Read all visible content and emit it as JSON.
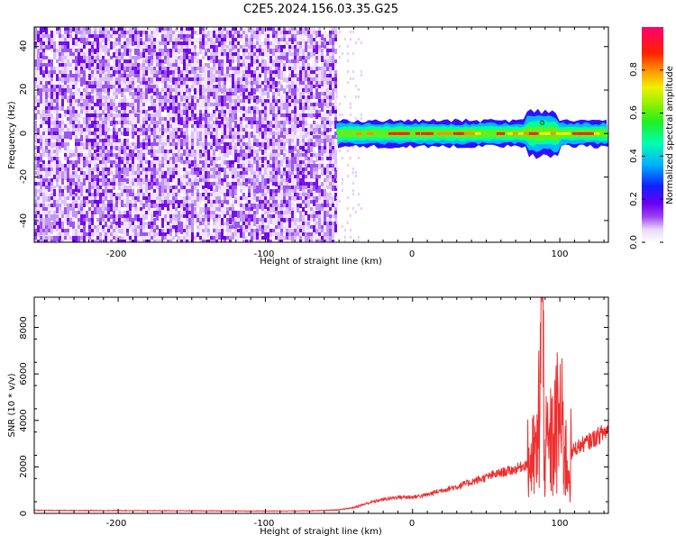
{
  "title": "C2E5.2024.156.03.35.G25",
  "chart_data": [
    {
      "type": "heatmap",
      "xlabel": "Height of straight line (km)",
      "ylabel": "Frequency (Hz)",
      "xlim": [
        -257,
        133
      ],
      "ylim": [
        -50,
        49
      ],
      "xticks": [
        -200,
        -100,
        0,
        100
      ],
      "yticks": [
        -40,
        -20,
        0,
        20,
        40
      ],
      "colorbar": {
        "label": "Normalized spectral amplitude",
        "range": [
          0,
          1
        ],
        "ticks": [
          "0.0",
          "0.2",
          "0.4",
          "0.6",
          "0.8"
        ],
        "tick_values": [
          0.0,
          0.2,
          0.4,
          0.6,
          0.8
        ]
      },
      "noise_region": {
        "x_range": [
          -257,
          -52
        ],
        "freq_range": [
          -50,
          49
        ],
        "level": "low (0.0–0.25)"
      },
      "signal_band": {
        "x_range": [
          -52,
          133
        ],
        "center_freq_hz": 0,
        "half_width_hz": 3,
        "peak_level": "0.8–1.0",
        "disturbance_x": 88
      }
    },
    {
      "type": "line",
      "xlabel": "Height of straight line (km)",
      "ylabel": "SNR (10 * v/v)",
      "xlim": [
        -257,
        133
      ],
      "ylim": [
        0,
        9300
      ],
      "xticks": [
        -200,
        -100,
        0,
        100
      ],
      "yticks": [
        0,
        2000,
        4000,
        6000,
        8000
      ],
      "series": [
        {
          "color": "#ee3030",
          "x": [
            -257,
            -200,
            -150,
            -100,
            -70,
            -50,
            -40,
            -30,
            -20,
            -10,
            0,
            10,
            20,
            30,
            40,
            50,
            60,
            70,
            75,
            80,
            85,
            88,
            90,
            95,
            100,
            105,
            110,
            120,
            133
          ],
          "y": [
            130,
            120,
            110,
            100,
            110,
            150,
            250,
            450,
            600,
            700,
            700,
            800,
            1000,
            1150,
            1350,
            1550,
            1750,
            1900,
            2050,
            2200,
            2500,
            9300,
            2600,
            3000,
            4200,
            2000,
            2800,
            3100,
            3600
          ]
        }
      ]
    }
  ]
}
